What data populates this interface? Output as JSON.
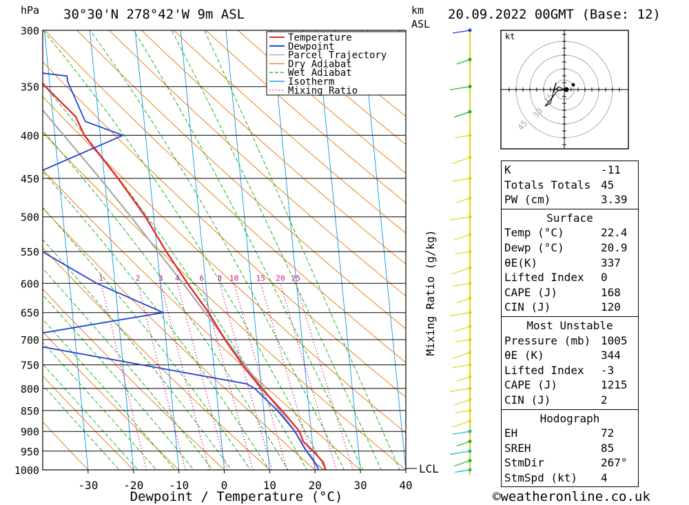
{
  "header": {
    "pressure_unit": "hPa",
    "location": "30°30'N  278°42'W  9m  ASL",
    "height_unit_line1": "km",
    "height_unit_line2": "ASL",
    "datetime": "20.09.2022  00GMT  (Base: 12)"
  },
  "hodograph": {
    "unit": "kt",
    "rings": [
      "15",
      "30",
      "45"
    ]
  },
  "stats": {
    "indices": [
      {
        "label": "K",
        "value": "-11"
      },
      {
        "label": "Totals Totals",
        "value": "45"
      },
      {
        "label": "PW (cm)",
        "value": "3.39"
      }
    ],
    "surface": {
      "title": "Surface",
      "rows": [
        {
          "label": "Temp (°C)",
          "value": "22.4"
        },
        {
          "label": "Dewp (°C)",
          "value": "20.9"
        },
        {
          "label": "θE(K)",
          "value": "337"
        },
        {
          "label": "Lifted Index",
          "value": "0"
        },
        {
          "label": "CAPE (J)",
          "value": "168"
        },
        {
          "label": "CIN (J)",
          "value": "120"
        }
      ]
    },
    "most_unstable": {
      "title": "Most Unstable",
      "rows": [
        {
          "label": "Pressure (mb)",
          "value": "1005"
        },
        {
          "label": "θE (K)",
          "value": "344"
        },
        {
          "label": "Lifted Index",
          "value": "-3"
        },
        {
          "label": "CAPE (J)",
          "value": "1215"
        },
        {
          "label": "CIN (J)",
          "value": "2"
        }
      ]
    },
    "hodograph": {
      "title": "Hodograph",
      "rows": [
        {
          "label": "EH",
          "value": "72"
        },
        {
          "label": "SREH",
          "value": "85"
        },
        {
          "label": "StmDir",
          "value": "267°"
        },
        {
          "label": "StmSpd (kt)",
          "value": "4"
        }
      ]
    }
  },
  "credit": "©weatheronline.co.uk",
  "colors": {
    "temperature": "#e8262a",
    "dewpoint": "#1f3fd6",
    "parcel": "#a8a8a8",
    "dry_adiabat": "#e8801a",
    "wet_adiabat": "#1fb21f",
    "isotherm": "#1e9ee8",
    "mixing_ratio": "#c8157c",
    "wind": "#e6d21e"
  },
  "chart_data": {
    "type": "line",
    "xlabel": "Dewpoint / Temperature (°C)",
    "ylabel": "hPa",
    "right_label": "Mixing Ratio (g/kg)",
    "xlim": [
      -40,
      40
    ],
    "ylim": [
      1000,
      300
    ],
    "x_ticks": [
      -30,
      -20,
      -10,
      0,
      10,
      20,
      30,
      40
    ],
    "pressure_levels": [
      300,
      350,
      400,
      450,
      500,
      550,
      600,
      650,
      700,
      750,
      800,
      850,
      900,
      950,
      1000
    ],
    "mixing_ratio_labels": [
      "1",
      "2",
      "3",
      "4",
      "6",
      "8",
      "10",
      "15",
      "20",
      "25"
    ],
    "mixing_ratio_values": [
      1,
      2,
      3,
      4,
      6,
      8,
      10,
      15,
      20,
      25
    ],
    "lcl_label": "LCL",
    "legend": {
      "position": "top-right",
      "entries": [
        "Temperature",
        "Dewpoint",
        "Parcel Trajectory",
        "Dry Adiabat",
        "Wet Adiabat",
        "Isotherm",
        "Mixing Ratio"
      ]
    },
    "series": [
      {
        "name": "Temperature",
        "points": [
          [
            1005,
            22.4
          ],
          [
            980,
            22
          ],
          [
            950,
            20
          ],
          [
            925,
            18
          ],
          [
            900,
            17.4
          ],
          [
            850,
            14
          ],
          [
            800,
            10
          ],
          [
            760,
            7
          ],
          [
            700,
            3
          ],
          [
            650,
            0
          ],
          [
            600,
            -4
          ],
          [
            550,
            -8
          ],
          [
            500,
            -11.8
          ],
          [
            450,
            -17
          ],
          [
            400,
            -23.5
          ],
          [
            380,
            -25
          ],
          [
            350,
            -31
          ],
          [
            320,
            -36
          ],
          [
            300,
            -39
          ]
        ]
      },
      {
        "name": "Dewpoint",
        "points": [
          [
            1005,
            20.9
          ],
          [
            990,
            20.5
          ],
          [
            970,
            19.7
          ],
          [
            950,
            18.5
          ],
          [
            900,
            16.4
          ],
          [
            850,
            13
          ],
          [
            800,
            8.5
          ],
          [
            790,
            6.8
          ],
          [
            700,
            -46
          ],
          [
            650,
            -10
          ],
          [
            600,
            -24
          ],
          [
            560,
            -33
          ],
          [
            530,
            -40
          ],
          [
            525,
            -57
          ],
          [
            500,
            -58
          ],
          [
            400,
            -15
          ],
          [
            385,
            -23
          ],
          [
            345,
            -26
          ],
          [
            340,
            -26
          ],
          [
            335,
            -36
          ],
          [
            320,
            -46
          ],
          [
            300,
            -52
          ]
        ]
      },
      {
        "name": "Parcel Trajectory",
        "points": [
          [
            1005,
            22.4
          ],
          [
            980,
            20
          ],
          [
            950,
            18.5
          ],
          [
            900,
            16.4
          ],
          [
            850,
            13.5
          ],
          [
            800,
            10.3
          ],
          [
            750,
            6.8
          ],
          [
            700,
            3.2
          ],
          [
            650,
            -0.8
          ],
          [
            600,
            -5
          ],
          [
            550,
            -9.8
          ],
          [
            500,
            -15
          ],
          [
            450,
            -21
          ],
          [
            400,
            -28
          ],
          [
            350,
            -36
          ],
          [
            300,
            -45
          ]
        ]
      }
    ]
  }
}
